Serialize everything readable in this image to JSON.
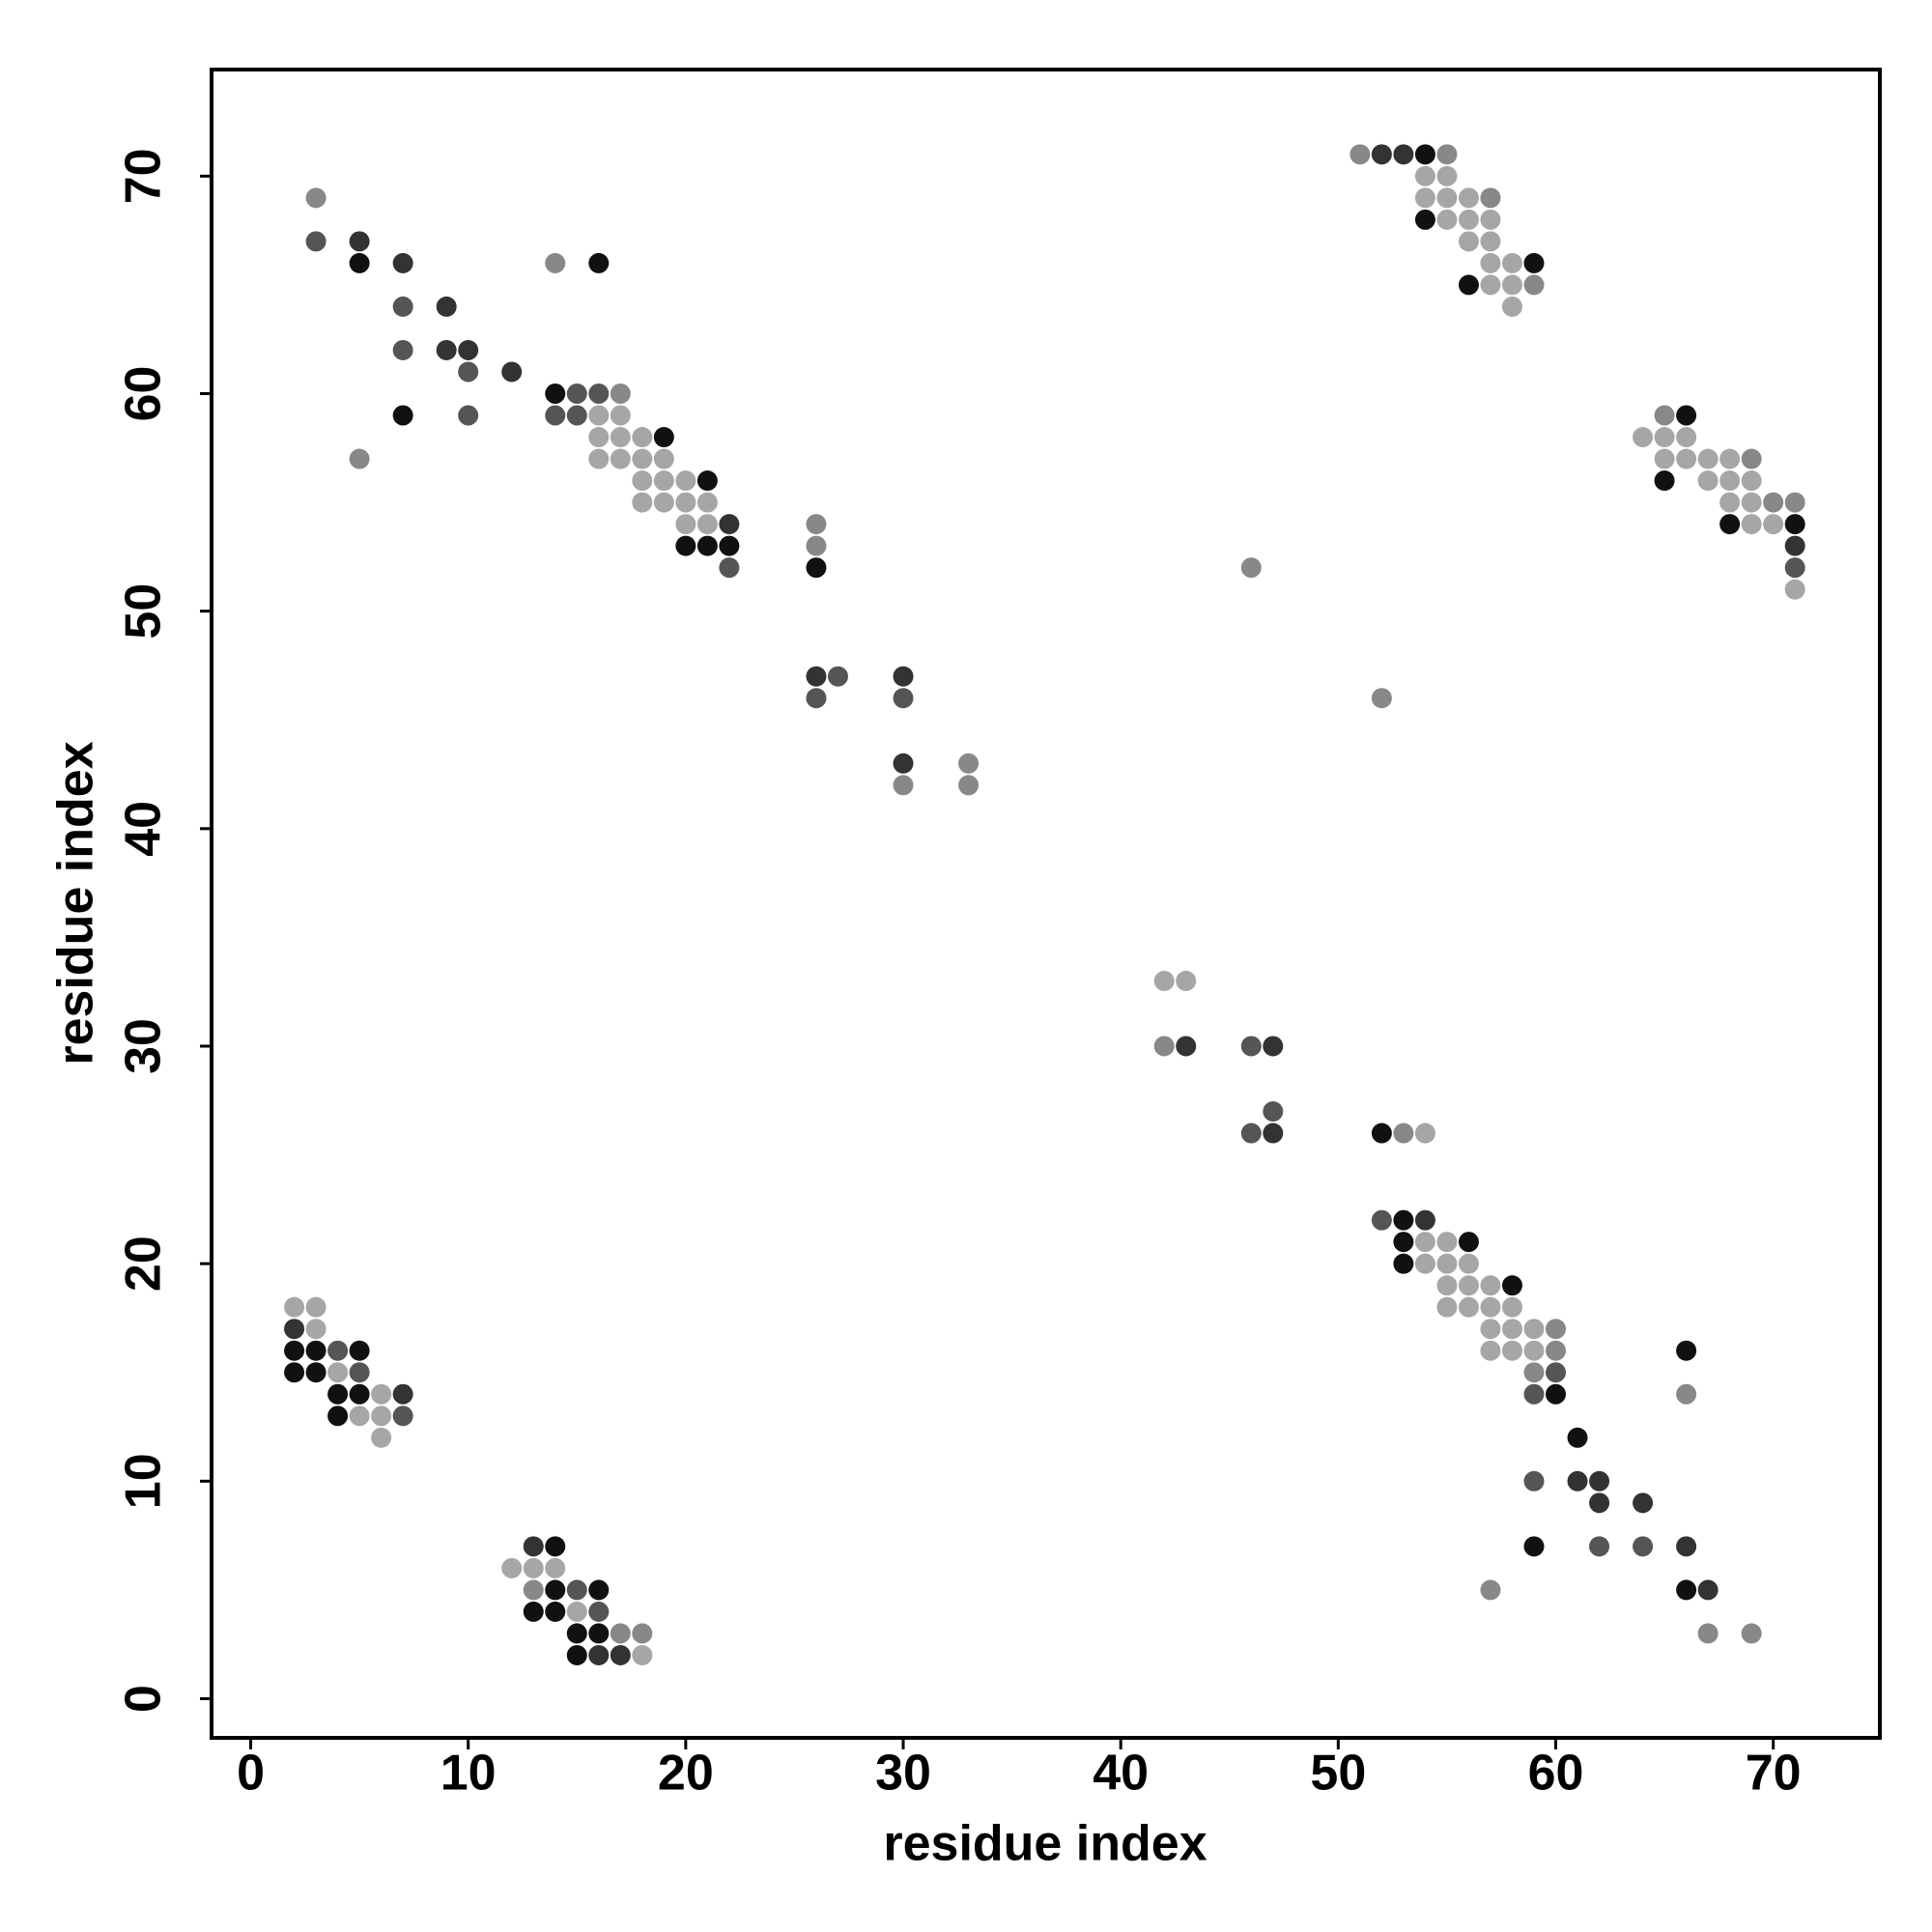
{
  "chart_data": {
    "type": "scatter",
    "xlabel": "residue index",
    "ylabel": "residue index",
    "xlim": [
      -1.8,
      74.9
    ],
    "ylim": [
      -1.8,
      74.9
    ],
    "xticks": [
      0,
      10,
      20,
      30,
      40,
      50,
      60,
      70
    ],
    "yticks": [
      0,
      10,
      20,
      30,
      40,
      50,
      60,
      70
    ],
    "x": [
      3,
      3,
      5,
      5,
      7,
      7,
      9,
      7,
      9,
      10,
      10,
      12,
      7,
      10,
      5,
      14,
      16,
      14,
      15,
      16,
      17,
      14,
      15,
      16,
      17,
      16,
      17,
      18,
      19,
      16,
      17,
      18,
      19,
      18,
      19,
      20,
      21,
      18,
      19,
      20,
      21,
      20,
      21,
      22,
      20,
      21,
      22,
      22,
      26,
      26,
      26,
      26,
      27,
      26,
      30,
      30,
      30,
      30,
      33,
      33,
      51,
      52,
      53,
      54,
      55,
      54,
      55,
      54,
      55,
      56,
      57,
      54,
      55,
      56,
      57,
      56,
      57,
      57,
      58,
      59,
      56,
      57,
      58,
      59,
      58,
      46,
      52,
      65,
      66,
      64,
      65,
      66,
      65,
      66,
      67,
      68,
      69,
      65,
      67,
      68,
      69,
      68,
      69,
      70,
      71,
      68,
      69,
      70,
      71,
      71,
      71,
      71,
      42,
      43,
      42,
      43,
      46,
      47,
      47,
      46,
      47,
      52,
      53,
      54,
      52,
      53,
      54,
      53,
      54,
      55,
      56,
      53,
      54,
      55,
      56,
      55,
      56,
      57,
      58,
      55,
      56,
      57,
      58,
      57,
      58,
      59,
      60,
      57,
      58,
      59,
      60,
      66,
      59,
      60,
      59,
      60,
      66,
      61,
      59,
      61,
      62,
      62,
      64,
      59,
      62,
      64,
      66,
      57,
      66,
      67,
      67,
      69,
      2,
      3,
      2,
      3,
      2,
      3,
      4,
      5,
      2,
      3,
      4,
      5,
      4,
      5,
      6,
      7,
      4,
      5,
      6,
      7,
      6,
      13,
      14,
      12,
      13,
      14,
      13,
      14,
      15,
      16,
      13,
      14,
      15,
      16,
      15,
      16,
      17,
      18,
      15,
      16,
      17,
      18
    ],
    "values": [
      69,
      67,
      67,
      66,
      66,
      64,
      64,
      62,
      62,
      62,
      61,
      61,
      59,
      59,
      57,
      66,
      66,
      60,
      60,
      60,
      60,
      59,
      59,
      59,
      59,
      58,
      58,
      58,
      58,
      57,
      57,
      57,
      57,
      56,
      56,
      56,
      56,
      55,
      55,
      55,
      55,
      54,
      54,
      54,
      53,
      53,
      53,
      52,
      54,
      53,
      52,
      47,
      47,
      46,
      47,
      46,
      43,
      42,
      43,
      42,
      71,
      71,
      71,
      71,
      71,
      70,
      70,
      69,
      69,
      69,
      69,
      68,
      68,
      68,
      68,
      67,
      67,
      66,
      66,
      66,
      65,
      65,
      65,
      65,
      64,
      52,
      46,
      59,
      59,
      58,
      58,
      58,
      57,
      57,
      57,
      57,
      57,
      56,
      56,
      56,
      56,
      55,
      55,
      55,
      55,
      54,
      54,
      54,
      54,
      53,
      52,
      51,
      33,
      33,
      30,
      30,
      30,
      30,
      27,
      26,
      26,
      26,
      26,
      26,
      22,
      22,
      22,
      21,
      21,
      21,
      21,
      20,
      20,
      20,
      20,
      19,
      19,
      19,
      19,
      18,
      18,
      18,
      18,
      17,
      17,
      17,
      17,
      16,
      16,
      16,
      16,
      16,
      15,
      15,
      14,
      14,
      14,
      12,
      10,
      10,
      10,
      9,
      9,
      7,
      7,
      7,
      7,
      5,
      5,
      5,
      3,
      3,
      18,
      18,
      17,
      17,
      16,
      16,
      16,
      16,
      15,
      15,
      15,
      15,
      14,
      14,
      14,
      14,
      13,
      13,
      13,
      13,
      12,
      7,
      7,
      6,
      6,
      6,
      5,
      5,
      5,
      5,
      4,
      4,
      4,
      4,
      3,
      3,
      3,
      3,
      2,
      2,
      2,
      2
    ],
    "colors": [
      "#888888",
      "#555555",
      "#333333",
      "#111111",
      "#333333",
      "#555555",
      "#333333",
      "#555555",
      "#333333",
      "#333333",
      "#555555",
      "#333333",
      "#111111",
      "#555555",
      "#888888",
      "#888888",
      "#111111",
      "#111111",
      "#555555",
      "#555555",
      "#888888",
      "#555555",
      "#555555",
      "#a6a6a6",
      "#a6a6a6",
      "#a6a6a6",
      "#a6a6a6",
      "#a6a6a6",
      "#111111",
      "#a6a6a6",
      "#a6a6a6",
      "#a6a6a6",
      "#a6a6a6",
      "#a6a6a6",
      "#a6a6a6",
      "#a6a6a6",
      "#111111",
      "#a6a6a6",
      "#a6a6a6",
      "#a6a6a6",
      "#a6a6a6",
      "#a6a6a6",
      "#a6a6a6",
      "#333333",
      "#111111",
      "#111111",
      "#111111",
      "#555555",
      "#888888",
      "#888888",
      "#111111",
      "#333333",
      "#555555",
      "#555555",
      "#333333",
      "#555555",
      "#333333",
      "#888888",
      "#888888",
      "#888888",
      "#888888",
      "#333333",
      "#333333",
      "#111111",
      "#888888",
      "#a6a6a6",
      "#a6a6a6",
      "#a6a6a6",
      "#a6a6a6",
      "#a6a6a6",
      "#888888",
      "#111111",
      "#a6a6a6",
      "#a6a6a6",
      "#a6a6a6",
      "#a6a6a6",
      "#a6a6a6",
      "#a6a6a6",
      "#a6a6a6",
      "#111111",
      "#111111",
      "#a6a6a6",
      "#a6a6a6",
      "#888888",
      "#a6a6a6",
      "#888888",
      "#888888",
      "#888888",
      "#111111",
      "#a6a6a6",
      "#a6a6a6",
      "#a6a6a6",
      "#a6a6a6",
      "#a6a6a6",
      "#a6a6a6",
      "#a6a6a6",
      "#888888",
      "#111111",
      "#a6a6a6",
      "#a6a6a6",
      "#a6a6a6",
      "#a6a6a6",
      "#a6a6a6",
      "#888888",
      "#888888",
      "#111111",
      "#a6a6a6",
      "#a6a6a6",
      "#111111",
      "#333333",
      "#555555",
      "#a6a6a6",
      "#a6a6a6",
      "#a6a6a6",
      "#888888",
      "#333333",
      "#555555",
      "#333333",
      "#555555",
      "#555555",
      "#333333",
      "#111111",
      "#888888",
      "#a6a6a6",
      "#555555",
      "#111111",
      "#333333",
      "#111111",
      "#a6a6a6",
      "#a6a6a6",
      "#111111",
      "#111111",
      "#a6a6a6",
      "#a6a6a6",
      "#a6a6a6",
      "#a6a6a6",
      "#a6a6a6",
      "#a6a6a6",
      "#111111",
      "#a6a6a6",
      "#a6a6a6",
      "#a6a6a6",
      "#a6a6a6",
      "#a6a6a6",
      "#a6a6a6",
      "#a6a6a6",
      "#888888",
      "#a6a6a6",
      "#a6a6a6",
      "#a6a6a6",
      "#888888",
      "#111111",
      "#888888",
      "#555555",
      "#555555",
      "#111111",
      "#888888",
      "#111111",
      "#555555",
      "#333333",
      "#333333",
      "#333333",
      "#333333",
      "#111111",
      "#555555",
      "#555555",
      "#333333",
      "#888888",
      "#111111",
      "#333333",
      "#888888",
      "#888888",
      "#a6a6a6",
      "#a6a6a6",
      "#333333",
      "#a6a6a6",
      "#111111",
      "#111111",
      "#555555",
      "#111111",
      "#111111",
      "#111111",
      "#a6a6a6",
      "#555555",
      "#111111",
      "#111111",
      "#a6a6a6",
      "#333333",
      "#111111",
      "#a6a6a6",
      "#a6a6a6",
      "#555555",
      "#a6a6a6",
      "#333333",
      "#111111",
      "#a6a6a6",
      "#a6a6a6",
      "#a6a6a6",
      "#888888",
      "#111111",
      "#555555",
      "#111111",
      "#111111",
      "#111111",
      "#a6a6a6",
      "#555555",
      "#111111",
      "#111111",
      "#888888",
      "#888888",
      "#111111",
      "#333333",
      "#333333",
      "#a6a6a6"
    ]
  }
}
